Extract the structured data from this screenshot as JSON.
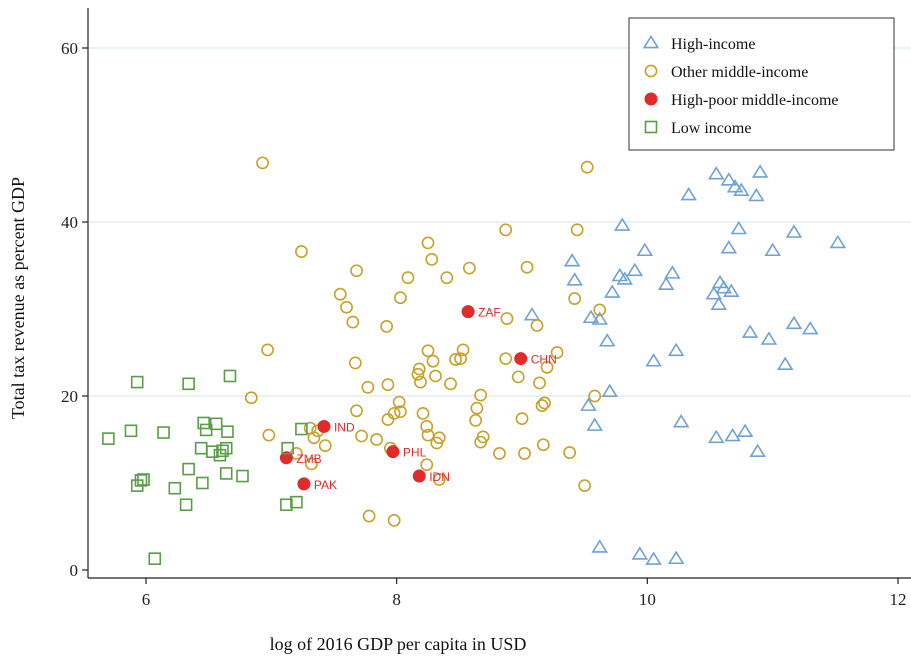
{
  "chart_data": {
    "type": "scatter",
    "xlabel": "log of 2016 GDP per capita in USD",
    "ylabel": "Total tax revenue as percent GDP",
    "xlim": [
      5.6,
      12.1
    ],
    "ylim": [
      -1,
      65
    ],
    "x_ticks": [
      "6",
      "8",
      "10",
      "12"
    ],
    "y_ticks": [
      "0",
      "20",
      "40",
      "60"
    ],
    "grid": "horizontal",
    "legend_position": "top-right",
    "series": [
      {
        "name": "High-income",
        "marker": "triangle",
        "color": "#6fa1d8",
        "points": [
          [
            10.55,
            45.5
          ],
          [
            10.65,
            44.8
          ],
          [
            10.7,
            44.0
          ],
          [
            10.75,
            43.6
          ],
          [
            10.9,
            45.7
          ],
          [
            10.87,
            43.0
          ],
          [
            10.33,
            43.1
          ],
          [
            9.8,
            39.6
          ],
          [
            9.98,
            36.7
          ],
          [
            10.73,
            39.2
          ],
          [
            11.17,
            38.8
          ],
          [
            11.52,
            37.6
          ],
          [
            10.65,
            37.0
          ],
          [
            11.0,
            36.7
          ],
          [
            9.4,
            35.5
          ],
          [
            9.9,
            34.4
          ],
          [
            10.2,
            34.1
          ],
          [
            9.78,
            33.8
          ],
          [
            9.82,
            33.4
          ],
          [
            10.15,
            32.8
          ],
          [
            9.42,
            33.3
          ],
          [
            10.58,
            33.0
          ],
          [
            10.61,
            32.4
          ],
          [
            10.67,
            32.0
          ],
          [
            10.53,
            31.7
          ],
          [
            9.72,
            31.9
          ],
          [
            10.57,
            30.5
          ],
          [
            9.08,
            29.3
          ],
          [
            9.55,
            29.0
          ],
          [
            9.62,
            28.8
          ],
          [
            11.17,
            28.3
          ],
          [
            11.3,
            27.7
          ],
          [
            10.82,
            27.3
          ],
          [
            10.97,
            26.5
          ],
          [
            9.68,
            26.3
          ],
          [
            10.23,
            25.2
          ],
          [
            10.05,
            24.0
          ],
          [
            11.1,
            23.6
          ],
          [
            9.7,
            20.5
          ],
          [
            9.53,
            18.9
          ],
          [
            9.58,
            16.6
          ],
          [
            10.27,
            17.0
          ],
          [
            10.55,
            15.2
          ],
          [
            10.68,
            15.4
          ],
          [
            10.78,
            15.9
          ],
          [
            10.88,
            13.6
          ],
          [
            9.62,
            2.6
          ],
          [
            9.94,
            1.8
          ],
          [
            10.05,
            1.2
          ],
          [
            10.23,
            1.3
          ]
        ]
      },
      {
        "name": "Other middle-income",
        "marker": "circle",
        "color": "#c7a12a",
        "points": [
          [
            6.93,
            46.8
          ],
          [
            9.52,
            46.3
          ],
          [
            7.24,
            36.6
          ],
          [
            8.87,
            39.1
          ],
          [
            9.44,
            39.1
          ],
          [
            8.25,
            37.6
          ],
          [
            8.28,
            35.7
          ],
          [
            8.58,
            34.7
          ],
          [
            9.04,
            34.8
          ],
          [
            7.68,
            34.4
          ],
          [
            8.09,
            33.6
          ],
          [
            8.4,
            33.6
          ],
          [
            7.55,
            31.7
          ],
          [
            8.03,
            31.3
          ],
          [
            9.42,
            31.2
          ],
          [
            7.6,
            30.2
          ],
          [
            9.62,
            29.9
          ],
          [
            7.65,
            28.5
          ],
          [
            9.12,
            28.1
          ],
          [
            7.92,
            28.0
          ],
          [
            8.88,
            28.9
          ],
          [
            6.97,
            25.3
          ],
          [
            8.25,
            25.2
          ],
          [
            8.53,
            25.3
          ],
          [
            9.28,
            25.0
          ],
          [
            8.29,
            24.0
          ],
          [
            8.47,
            24.2
          ],
          [
            8.51,
            24.3
          ],
          [
            8.87,
            24.3
          ],
          [
            7.67,
            23.8
          ],
          [
            8.18,
            23.1
          ],
          [
            8.17,
            22.5
          ],
          [
            8.31,
            22.3
          ],
          [
            8.19,
            21.6
          ],
          [
            8.43,
            21.4
          ],
          [
            8.97,
            22.2
          ],
          [
            9.2,
            23.3
          ],
          [
            9.14,
            21.5
          ],
          [
            7.93,
            21.3
          ],
          [
            7.77,
            21.0
          ],
          [
            6.84,
            19.8
          ],
          [
            8.67,
            20.1
          ],
          [
            9.58,
            20.0
          ],
          [
            9.18,
            19.2
          ],
          [
            9.16,
            18.9
          ],
          [
            8.02,
            19.3
          ],
          [
            8.64,
            18.6
          ],
          [
            7.68,
            18.3
          ],
          [
            7.98,
            18.0
          ],
          [
            8.03,
            18.2
          ],
          [
            8.21,
            18.0
          ],
          [
            7.93,
            17.3
          ],
          [
            9.0,
            17.4
          ],
          [
            8.24,
            16.5
          ],
          [
            8.25,
            15.5
          ],
          [
            8.32,
            14.6
          ],
          [
            8.34,
            15.2
          ],
          [
            8.63,
            17.2
          ],
          [
            8.69,
            15.3
          ],
          [
            8.67,
            14.7
          ],
          [
            7.37,
            16.0
          ],
          [
            7.31,
            16.3
          ],
          [
            7.34,
            15.2
          ],
          [
            7.72,
            15.4
          ],
          [
            7.84,
            15.0
          ],
          [
            7.43,
            14.3
          ],
          [
            7.95,
            14.0
          ],
          [
            8.82,
            13.4
          ],
          [
            9.02,
            13.4
          ],
          [
            9.17,
            14.4
          ],
          [
            9.38,
            13.5
          ],
          [
            7.2,
            13.4
          ],
          [
            7.32,
            12.2
          ],
          [
            8.24,
            12.1
          ],
          [
            6.98,
            15.5
          ],
          [
            8.34,
            10.4
          ],
          [
            9.5,
            9.7
          ],
          [
            7.78,
            6.2
          ],
          [
            7.98,
            5.7
          ]
        ]
      },
      {
        "name": "High-poor middle-income",
        "marker": "dot",
        "color": "#e12a2a",
        "points": [
          {
            "x": 8.57,
            "y": 29.7,
            "label": "ZAF"
          },
          {
            "x": 8.99,
            "y": 24.3,
            "label": "CHN"
          },
          {
            "x": 7.42,
            "y": 16.5,
            "label": "IND"
          },
          {
            "x": 7.12,
            "y": 12.9,
            "label": "ZMB"
          },
          {
            "x": 7.97,
            "y": 13.6,
            "label": "PHL"
          },
          {
            "x": 7.26,
            "y": 9.9,
            "label": "PAK"
          },
          {
            "x": 8.18,
            "y": 10.8,
            "label": "IDN"
          }
        ]
      },
      {
        "name": "Low income",
        "marker": "square",
        "color": "#5a9c49",
        "points": [
          [
            5.93,
            21.6
          ],
          [
            6.34,
            21.4
          ],
          [
            6.67,
            22.3
          ],
          [
            5.7,
            15.1
          ],
          [
            5.88,
            16.0
          ],
          [
            6.14,
            15.8
          ],
          [
            6.46,
            16.9
          ],
          [
            6.56,
            16.8
          ],
          [
            6.48,
            16.1
          ],
          [
            6.65,
            15.9
          ],
          [
            6.44,
            14.0
          ],
          [
            6.53,
            13.6
          ],
          [
            6.61,
            13.7
          ],
          [
            6.59,
            13.2
          ],
          [
            6.64,
            14.0
          ],
          [
            7.13,
            14.0
          ],
          [
            7.24,
            16.2
          ],
          [
            6.34,
            11.6
          ],
          [
            6.64,
            11.1
          ],
          [
            6.77,
            10.8
          ],
          [
            5.96,
            10.3
          ],
          [
            5.98,
            10.4
          ],
          [
            5.93,
            9.7
          ],
          [
            6.23,
            9.4
          ],
          [
            6.45,
            10.0
          ],
          [
            6.32,
            7.5
          ],
          [
            7.12,
            7.5
          ],
          [
            7.2,
            7.8
          ],
          [
            6.07,
            1.3
          ]
        ]
      }
    ]
  }
}
